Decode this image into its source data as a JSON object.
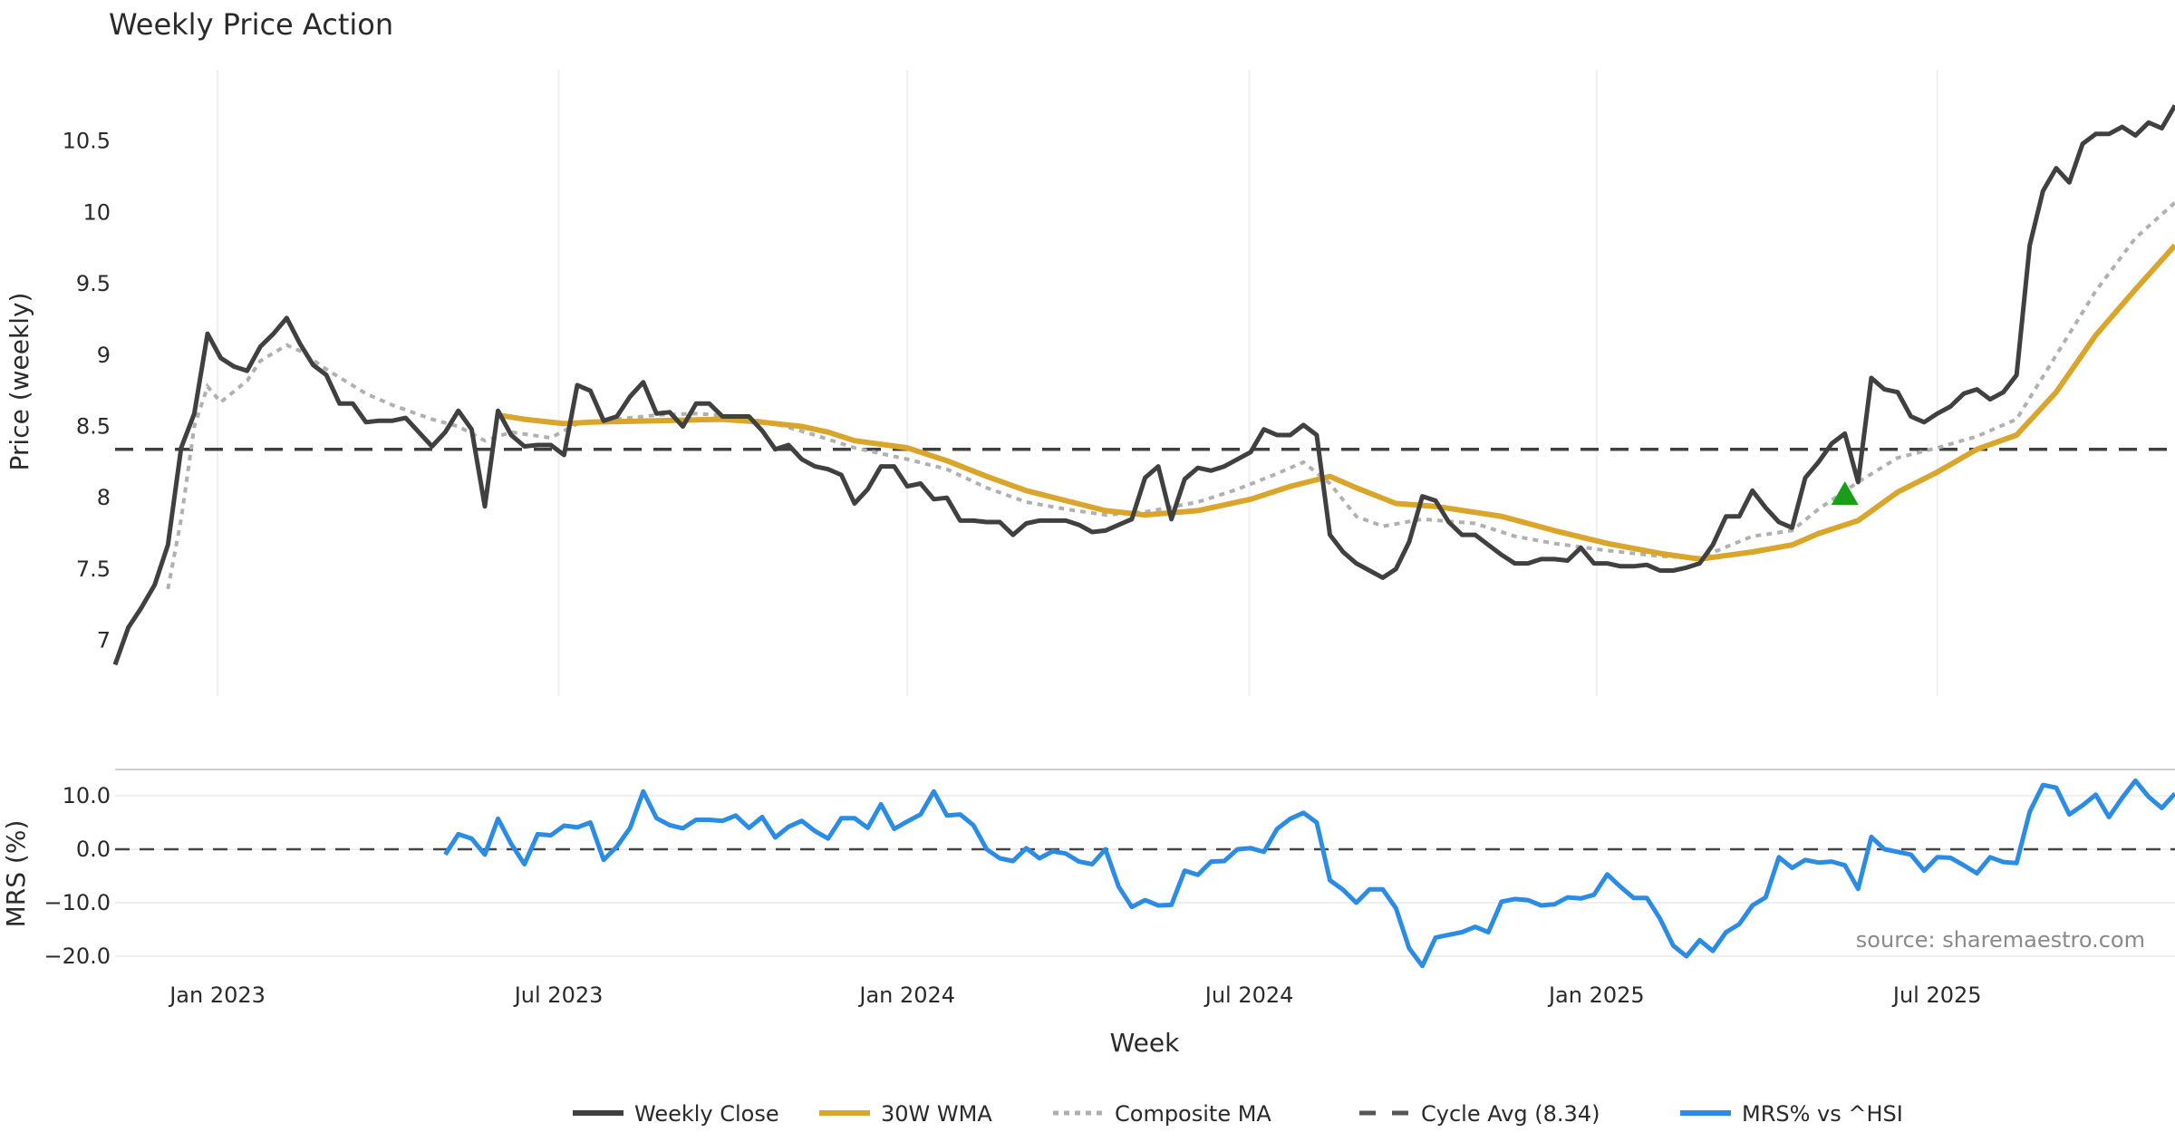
{
  "chart_data": [
    {
      "type": "line",
      "title": "Weekly Price Action",
      "ylabel": "Price (weekly)",
      "xlabel": "Week",
      "ylim": [
        6.61,
        11.0
      ],
      "yticks": [
        7,
        7.5,
        8,
        8.5,
        9,
        9.5,
        10,
        10.5
      ],
      "ytick_labels": [
        "7",
        "7.5",
        "8",
        "8.5",
        "9",
        "9.5",
        "10",
        "10.5"
      ],
      "x_unit": "week index",
      "x_range": [
        0,
        156
      ],
      "grid": "vertical",
      "series": [
        {
          "name": "Weekly Close",
          "color": "#404040",
          "style": "solid",
          "start_week": 0,
          "values": [
            6.83,
            7.09,
            7.23,
            7.39,
            7.67,
            8.35,
            8.59,
            9.15,
            8.98,
            8.92,
            8.89,
            9.06,
            9.15,
            9.26,
            9.08,
            8.93,
            8.86,
            8.66,
            8.66,
            8.53,
            8.54,
            8.54,
            8.56,
            8.46,
            8.36,
            8.46,
            8.61,
            8.48,
            7.94,
            8.61,
            8.44,
            8.36,
            8.37,
            8.37,
            8.3,
            8.79,
            8.75,
            8.54,
            8.57,
            8.71,
            8.81,
            8.59,
            8.6,
            8.5,
            8.66,
            8.66,
            8.57,
            8.57,
            8.57,
            8.47,
            8.34,
            8.37,
            8.27,
            8.22,
            8.2,
            8.16,
            7.96,
            8.06,
            8.22,
            8.22,
            8.08,
            8.1,
            7.99,
            8.0,
            7.84,
            7.84,
            7.83,
            7.83,
            7.74,
            7.82,
            7.84,
            7.84,
            7.84,
            7.81,
            7.76,
            7.77,
            7.81,
            7.85,
            8.14,
            8.22,
            7.85,
            8.13,
            8.21,
            8.19,
            8.22,
            8.27,
            8.32,
            8.48,
            8.44,
            8.44,
            8.51,
            8.44,
            7.74,
            7.62,
            7.54,
            7.49,
            7.44,
            7.5,
            7.69,
            8.01,
            7.98,
            7.83,
            7.74,
            7.74,
            7.67,
            7.6,
            7.54,
            7.54,
            7.57,
            7.57,
            7.56,
            7.65,
            7.54,
            7.54,
            7.52,
            7.52,
            7.53,
            7.49,
            7.49,
            7.51,
            7.54,
            7.67,
            7.87,
            7.87,
            8.05,
            7.93,
            7.83,
            7.79,
            8.14,
            8.25,
            8.38,
            8.45,
            8.11,
            8.84,
            8.76,
            8.74,
            8.57,
            8.53,
            8.59,
            8.64,
            8.73,
            8.76,
            8.69,
            8.74,
            8.86,
            9.77,
            10.15,
            10.31,
            10.21,
            10.48,
            10.55,
            10.55,
            10.6,
            10.54,
            10.63,
            10.59,
            10.75
          ]
        },
        {
          "name": "30W WMA",
          "color": "#d9a52b",
          "style": "solid",
          "points": [
            [
              29,
              8.58
            ],
            [
              31,
              8.55
            ],
            [
              34,
              8.52
            ],
            [
              36,
              8.53
            ],
            [
              41,
              8.54
            ],
            [
              46,
              8.55
            ],
            [
              49,
              8.53
            ],
            [
              52,
              8.5
            ],
            [
              54,
              8.46
            ],
            [
              56,
              8.4
            ],
            [
              60,
              8.35
            ],
            [
              63,
              8.26
            ],
            [
              66,
              8.15
            ],
            [
              69,
              8.05
            ],
            [
              72,
              7.98
            ],
            [
              75,
              7.91
            ],
            [
              78,
              7.88
            ],
            [
              82,
              7.91
            ],
            [
              86,
              7.99
            ],
            [
              89,
              8.08
            ],
            [
              92,
              8.15
            ],
            [
              94,
              8.07
            ],
            [
              97,
              7.96
            ],
            [
              100,
              7.94
            ],
            [
              105,
              7.87
            ],
            [
              109,
              7.77
            ],
            [
              113,
              7.68
            ],
            [
              117,
              7.61
            ],
            [
              120,
              7.57
            ],
            [
              124,
              7.62
            ],
            [
              127,
              7.67
            ],
            [
              129,
              7.75
            ],
            [
              132,
              7.84
            ],
            [
              135,
              8.04
            ],
            [
              138,
              8.18
            ],
            [
              141,
              8.34
            ],
            [
              144,
              8.44
            ],
            [
              147,
              8.74
            ],
            [
              150,
              9.14
            ],
            [
              153,
              9.46
            ],
            [
              156,
              9.77
            ]
          ]
        },
        {
          "name": "Composite MA",
          "color": "#b0b0b0",
          "style": "dotted",
          "points": [
            [
              4,
              7.36
            ],
            [
              5,
              7.85
            ],
            [
              6,
              8.5
            ],
            [
              7,
              8.78
            ],
            [
              8,
              8.67
            ],
            [
              10,
              8.82
            ],
            [
              11,
              8.96
            ],
            [
              13,
              9.07
            ],
            [
              14,
              9.03
            ],
            [
              16,
              8.9
            ],
            [
              19,
              8.73
            ],
            [
              21,
              8.65
            ],
            [
              24,
              8.55
            ],
            [
              26,
              8.5
            ],
            [
              28,
              8.4
            ],
            [
              30,
              8.46
            ],
            [
              33,
              8.42
            ],
            [
              35,
              8.52
            ],
            [
              38,
              8.55
            ],
            [
              41,
              8.58
            ],
            [
              44,
              8.59
            ],
            [
              47,
              8.57
            ],
            [
              50,
              8.52
            ],
            [
              53,
              8.44
            ],
            [
              56,
              8.35
            ],
            [
              60,
              8.27
            ],
            [
              63,
              8.2
            ],
            [
              66,
              8.07
            ],
            [
              69,
              7.97
            ],
            [
              72,
              7.92
            ],
            [
              75,
              7.88
            ],
            [
              78,
              7.9
            ],
            [
              82,
              7.97
            ],
            [
              85,
              8.06
            ],
            [
              88,
              8.17
            ],
            [
              90,
              8.25
            ],
            [
              92,
              8.1
            ],
            [
              94,
              7.87
            ],
            [
              96,
              7.8
            ],
            [
              99,
              7.85
            ],
            [
              103,
              7.82
            ],
            [
              106,
              7.73
            ],
            [
              109,
              7.68
            ],
            [
              113,
              7.63
            ],
            [
              117,
              7.59
            ],
            [
              120,
              7.58
            ],
            [
              124,
              7.73
            ],
            [
              127,
              7.77
            ],
            [
              129,
              7.92
            ],
            [
              132,
              8.11
            ],
            [
              135,
              8.28
            ],
            [
              138,
              8.35
            ],
            [
              141,
              8.43
            ],
            [
              144,
              8.55
            ],
            [
              147,
              9.0
            ],
            [
              150,
              9.45
            ],
            [
              153,
              9.82
            ],
            [
              156,
              10.07
            ]
          ]
        },
        {
          "name": "Cycle Avg (8.34)",
          "color": "#404040",
          "style": "dashed",
          "value": 8.34
        }
      ],
      "markers": [
        {
          "type": "triangle-up",
          "color": "#1a9e1a",
          "week": 131,
          "value": 8.02
        }
      ]
    },
    {
      "type": "line",
      "ylabel": "MRS (%)",
      "ylim": [
        -22.7,
        14.9
      ],
      "yticks": [
        10,
        0,
        -10,
        -20
      ],
      "ytick_labels": [
        "10.0",
        "0.0",
        "−10.0",
        "−20.0"
      ],
      "zero_line": 0,
      "series": [
        {
          "name": "MRS% vs ^HSI",
          "color": "#2b8ce6",
          "style": "solid",
          "start_week": 25,
          "values": [
            -1,
            2.8,
            2,
            -1,
            5.7,
            1,
            -2.8,
            2.8,
            2.6,
            4.4,
            4.1,
            5,
            -2,
            0.5,
            4,
            10.8,
            5.8,
            4.5,
            3.9,
            5.5,
            5.5,
            5.3,
            6.3,
            4,
            6,
            2.2,
            4.2,
            5.3,
            3.4,
            2,
            5.8,
            5.8,
            4,
            8.4,
            3.8,
            5.2,
            6.5,
            10.8,
            6.3,
            6.5,
            4.5,
            0,
            -1.7,
            -2.2,
            0.2,
            -1.7,
            -0.4,
            -0.8,
            -2.3,
            -2.8,
            0,
            -7,
            -10.8,
            -9.5,
            -10.5,
            -10.4,
            -4,
            -4.8,
            -2.3,
            -2.2,
            0,
            0.2,
            -0.5,
            3.8,
            5.7,
            6.8,
            5,
            -5.8,
            -7.6,
            -10,
            -7.5,
            -7.5,
            -11,
            -18.5,
            -21.8,
            -16.5,
            -16,
            -15.5,
            -14.5,
            -15.5,
            -9.8,
            -9.3,
            -9.5,
            -10.5,
            -10.3,
            -9,
            -9.2,
            -8.5,
            -4.7,
            -7,
            -9.1,
            -9.1,
            -13,
            -18,
            -20,
            -17,
            -19,
            -15.5,
            -14,
            -10.5,
            -9,
            -1.5,
            -3.5,
            -2,
            -2.5,
            -2.3,
            -3,
            -7.4,
            2.3,
            0,
            -0.5,
            -1,
            -4,
            -1.5,
            -1.6,
            -3,
            -4.5,
            -1.5,
            -2.4,
            -2.6,
            7,
            12,
            11.5,
            6.5,
            8.2,
            10.2,
            6,
            9.6,
            12.8,
            9.8,
            7.7,
            10.4
          ]
        }
      ]
    }
  ],
  "x_ticks": [
    {
      "week": 7.76,
      "label": "Jan 2023"
    },
    {
      "week": 33.6,
      "label": "Jul 2023"
    },
    {
      "week": 60.0,
      "label": "Jan 2024"
    },
    {
      "week": 85.9,
      "label": "Jul 2024"
    },
    {
      "week": 112.2,
      "label": "Jan 2025"
    },
    {
      "week": 138.0,
      "label": "Jul 2025"
    }
  ],
  "source": "source: sharemaestro.com",
  "legend": {
    "placement": "bottom-center",
    "items": [
      {
        "label": "Weekly Close",
        "color": "#404040",
        "style": "solid"
      },
      {
        "label": "30W WMA",
        "color": "#d9a52b",
        "style": "solid"
      },
      {
        "label": "Composite MA",
        "color": "#b0b0b0",
        "style": "dotted"
      },
      {
        "label": "Cycle Avg (8.34)",
        "color": "#555555",
        "style": "dashed"
      },
      {
        "label": "MRS% vs ^HSI",
        "color": "#2b8ce6",
        "style": "solid"
      }
    ]
  }
}
